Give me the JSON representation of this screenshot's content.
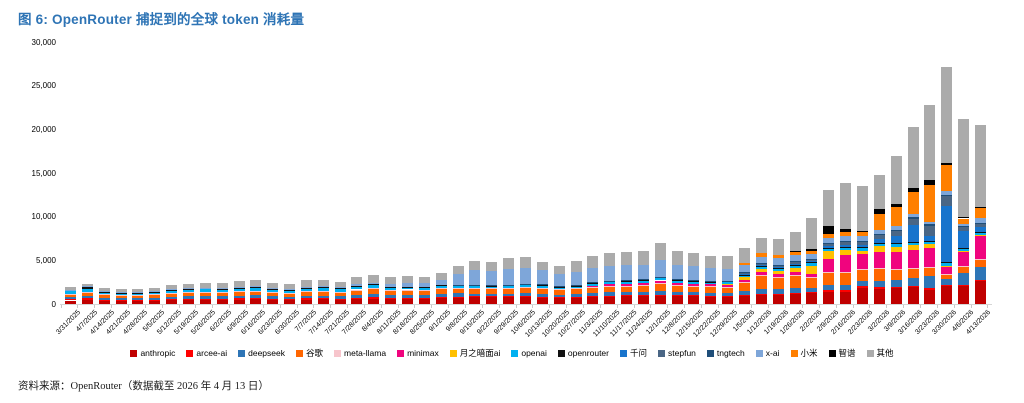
{
  "title": {
    "text": "图 6: OpenRouter 捕捉到的全球 token 消耗量"
  },
  "footer": {
    "text": "资料来源：OpenRouter（数据截至 2026 年 4 月 13 日）"
  },
  "chart_data": {
    "type": "bar",
    "stacked": true,
    "title": "图 6: OpenRouter 捕捉到的全球 token 消耗量",
    "xlabel": "",
    "ylabel": "",
    "ylim": [
      0,
      30000
    ],
    "y_ticks": [
      0,
      5000,
      10000,
      15000,
      20000,
      25000,
      30000
    ],
    "grid": false,
    "legend_position": "bottom",
    "categories": [
      "3/31/2025",
      "4/7/2025",
      "4/14/2025",
      "4/21/2025",
      "4/28/2025",
      "5/5/2025",
      "5/12/2025",
      "5/19/2025",
      "5/26/2025",
      "6/2/2025",
      "6/9/2025",
      "6/16/2025",
      "6/23/2025",
      "6/30/2025",
      "7/7/2025",
      "7/14/2025",
      "7/21/2025",
      "7/28/2025",
      "8/4/2025",
      "8/11/2025",
      "8/18/2025",
      "8/25/2025",
      "9/1/2025",
      "9/8/2025",
      "9/15/2025",
      "9/22/2025",
      "9/29/2025",
      "10/6/2025",
      "10/13/2025",
      "10/20/2025",
      "10/27/2025",
      "11/3/2025",
      "11/10/2025",
      "11/17/2025",
      "11/24/2025",
      "12/1/2025",
      "12/8/2025",
      "12/15/2025",
      "12/22/2025",
      "12/29/2025",
      "1/5/2026",
      "1/12/2026",
      "1/19/2026",
      "1/26/2026",
      "2/2/2026",
      "2/9/2026",
      "2/16/2026",
      "2/23/2026",
      "3/2/2026",
      "3/9/2026",
      "3/16/2026",
      "3/23/2026",
      "3/30/2026",
      "4/6/2026",
      "4/13/2026"
    ],
    "series": [
      {
        "name": "anthropic",
        "color": "#C00000",
        "values": [
          400,
          450,
          380,
          350,
          350,
          380,
          420,
          450,
          470,
          470,
          500,
          520,
          480,
          450,
          500,
          520,
          480,
          560,
          600,
          580,
          580,
          570,
          650,
          700,
          770,
          750,
          780,
          800,
          730,
          680,
          740,
          800,
          850,
          870,
          900,
          950,
          900,
          880,
          860,
          850,
          950,
          1040,
          1050,
          1100,
          1230,
          1420,
          1420,
          1800,
          1750,
          1800,
          1900,
          1650,
          2080,
          2080,
          2650
        ]
      },
      {
        "name": "arcee-ai",
        "color": "#FF0000",
        "values": [
          150,
          200,
          120,
          100,
          100,
          110,
          130,
          140,
          150,
          140,
          150,
          150,
          130,
          120,
          140,
          140,
          130,
          150,
          160,
          120,
          120,
          110,
          120,
          130,
          130,
          120,
          130,
          130,
          110,
          100,
          110,
          120,
          120,
          120,
          120,
          130,
          120,
          110,
          100,
          100,
          110,
          120,
          110,
          120,
          130,
          230,
          150,
          230,
          150,
          140,
          150,
          150,
          150,
          150,
          140
        ]
      },
      {
        "name": "deepseek",
        "color": "#2E75B6",
        "values": [
          250,
          280,
          220,
          200,
          200,
          220,
          260,
          280,
          290,
          280,
          300,
          310,
          280,
          260,
          300,
          310,
          280,
          340,
          370,
          320,
          330,
          320,
          360,
          380,
          300,
          290,
          290,
          320,
          330,
          290,
          300,
          330,
          350,
          360,
          370,
          420,
          370,
          350,
          340,
          330,
          380,
          580,
          560,
          600,
          500,
          580,
          580,
          580,
          700,
          800,
          900,
          1430,
          600,
          1270,
          1500
        ]
      },
      {
        "name": "谷歌",
        "color": "#FF6600",
        "values": [
          350,
          420,
          320,
          300,
          300,
          330,
          390,
          420,
          440,
          440,
          480,
          500,
          450,
          420,
          490,
          500,
          460,
          560,
          600,
          560,
          580,
          570,
          650,
          580,
          580,
          570,
          570,
          630,
          640,
          580,
          590,
          650,
          700,
          710,
          730,
          840,
          730,
          700,
          670,
          650,
          1000,
          1540,
          1300,
          1400,
          1200,
          1400,
          1500,
          1350,
          1500,
          1200,
          1100,
          990,
          500,
          810,
          800
        ]
      },
      {
        "name": "meta-llama",
        "color": "#F7C5CC",
        "values": [
          50,
          50,
          50,
          50,
          50,
          50,
          50,
          50,
          50,
          50,
          50,
          50,
          50,
          50,
          50,
          50,
          50,
          50,
          50,
          50,
          50,
          50,
          50,
          50,
          50,
          50,
          50,
          50,
          50,
          50,
          50,
          50,
          50,
          50,
          50,
          50,
          50,
          50,
          50,
          50,
          50,
          50,
          50,
          50,
          50,
          50,
          50,
          50,
          50,
          50,
          50,
          50,
          50,
          50,
          50
        ]
      },
      {
        "name": "minimax",
        "color": "#F0047E",
        "values": [
          0,
          0,
          0,
          0,
          0,
          0,
          0,
          0,
          0,
          0,
          0,
          0,
          0,
          0,
          0,
          0,
          0,
          0,
          0,
          0,
          0,
          0,
          0,
          0,
          0,
          0,
          0,
          0,
          0,
          0,
          0,
          150,
          200,
          220,
          250,
          300,
          250,
          230,
          220,
          220,
          250,
          300,
          320,
          350,
          380,
          1500,
          1900,
          1730,
          1800,
          2000,
          2100,
          2190,
          810,
          1550,
          2650
        ]
      },
      {
        "name": "月之暗面ai",
        "color": "#FFC000",
        "values": [
          0,
          0,
          0,
          0,
          0,
          0,
          0,
          0,
          0,
          0,
          0,
          0,
          0,
          0,
          0,
          0,
          0,
          0,
          0,
          0,
          0,
          0,
          0,
          0,
          0,
          0,
          0,
          0,
          0,
          0,
          0,
          0,
          0,
          0,
          0,
          0,
          0,
          0,
          0,
          100,
          300,
          350,
          400,
          500,
          900,
          900,
          580,
          380,
          700,
          580,
          500,
          400,
          200,
          200,
          150
        ]
      },
      {
        "name": "openai",
        "color": "#00B0F0",
        "values": [
          250,
          300,
          230,
          220,
          220,
          230,
          280,
          300,
          310,
          300,
          320,
          330,
          300,
          280,
          320,
          330,
          300,
          370,
          400,
          250,
          260,
          250,
          280,
          250,
          230,
          220,
          220,
          250,
          250,
          220,
          230,
          250,
          260,
          260,
          270,
          300,
          260,
          250,
          240,
          230,
          250,
          260,
          260,
          270,
          300,
          300,
          300,
          280,
          300,
          300,
          300,
          280,
          300,
          250,
          250
        ]
      },
      {
        "name": "openrouter",
        "color": "#111111",
        "values": [
          100,
          250,
          80,
          80,
          80,
          80,
          80,
          80,
          80,
          80,
          80,
          80,
          80,
          80,
          80,
          80,
          80,
          80,
          80,
          80,
          80,
          80,
          80,
          80,
          80,
          80,
          80,
          80,
          80,
          80,
          80,
          80,
          80,
          80,
          80,
          80,
          80,
          80,
          80,
          80,
          80,
          80,
          80,
          80,
          80,
          80,
          80,
          80,
          80,
          80,
          80,
          80,
          80,
          80,
          80
        ]
      },
      {
        "name": "千问",
        "color": "#1874CC",
        "values": [
          0,
          0,
          0,
          0,
          0,
          0,
          0,
          0,
          0,
          0,
          0,
          0,
          0,
          0,
          0,
          0,
          0,
          0,
          0,
          0,
          0,
          0,
          0,
          0,
          0,
          0,
          0,
          0,
          0,
          0,
          0,
          0,
          0,
          0,
          0,
          0,
          0,
          0,
          0,
          0,
          100,
          120,
          130,
          150,
          150,
          200,
          250,
          300,
          400,
          800,
          2000,
          600,
          6420,
          1920,
          600
        ]
      },
      {
        "name": "stepfun",
        "color": "#4A6685",
        "values": [
          0,
          0,
          0,
          0,
          0,
          0,
          0,
          0,
          0,
          0,
          0,
          0,
          0,
          0,
          0,
          0,
          0,
          0,
          0,
          0,
          0,
          0,
          0,
          0,
          0,
          0,
          0,
          0,
          0,
          0,
          0,
          0,
          0,
          0,
          0,
          0,
          0,
          0,
          0,
          0,
          100,
          150,
          200,
          250,
          200,
          300,
          350,
          400,
          500,
          600,
          700,
          1150,
          1150,
          400,
          300
        ]
      },
      {
        "name": "tngtech",
        "color": "#1F4E79",
        "values": [
          0,
          0,
          0,
          0,
          0,
          0,
          0,
          0,
          0,
          0,
          0,
          0,
          0,
          0,
          0,
          0,
          0,
          0,
          0,
          0,
          0,
          0,
          0,
          50,
          50,
          50,
          50,
          50,
          50,
          50,
          50,
          50,
          50,
          50,
          50,
          50,
          50,
          50,
          50,
          50,
          50,
          50,
          50,
          50,
          50,
          50,
          50,
          50,
          100,
          150,
          150,
          150,
          150,
          150,
          150
        ]
      },
      {
        "name": "x-ai",
        "color": "#7EA6D9",
        "values": [
          100,
          100,
          80,
          80,
          80,
          80,
          90,
          90,
          90,
          100,
          100,
          100,
          100,
          100,
          120,
          120,
          120,
          150,
          200,
          300,
          350,
          400,
          600,
          1200,
          1700,
          1600,
          1800,
          1800,
          1600,
          1400,
          1500,
          1600,
          1700,
          1700,
          1700,
          1900,
          1700,
          1600,
          1500,
          1400,
          900,
          770,
          800,
          700,
          500,
          580,
          580,
          580,
          450,
          400,
          350,
          300,
          400,
          300,
          580
        ]
      },
      {
        "name": "小米",
        "color": "#FF7F00",
        "values": [
          0,
          0,
          0,
          0,
          0,
          0,
          0,
          0,
          0,
          0,
          0,
          0,
          0,
          0,
          0,
          0,
          0,
          0,
          0,
          0,
          0,
          0,
          0,
          0,
          0,
          0,
          0,
          0,
          0,
          0,
          0,
          0,
          0,
          0,
          0,
          0,
          0,
          0,
          0,
          0,
          200,
          380,
          350,
          400,
          400,
          400,
          500,
          400,
          1800,
          2200,
          2500,
          4230,
          2970,
          580,
          1150
        ]
      },
      {
        "name": "智谱",
        "color": "#000000",
        "values": [
          0,
          0,
          0,
          0,
          0,
          0,
          0,
          0,
          0,
          0,
          0,
          0,
          0,
          0,
          0,
          0,
          0,
          0,
          0,
          0,
          0,
          0,
          0,
          0,
          0,
          0,
          0,
          0,
          0,
          0,
          0,
          0,
          0,
          0,
          0,
          0,
          0,
          0,
          0,
          0,
          0,
          0,
          0,
          100,
          200,
          970,
          300,
          200,
          580,
          400,
          500,
          580,
          300,
          150,
          100
        ]
      },
      {
        "name": "其他",
        "color": "#ABABAB",
        "values": [
          300,
          250,
          300,
          320,
          320,
          320,
          450,
          490,
          520,
          540,
          620,
          710,
          580,
          540,
          700,
          700,
          600,
          790,
          840,
          840,
          800,
          750,
          810,
          980,
          1010,
          1070,
          1280,
          1240,
          960,
          850,
          1250,
          1370,
          1440,
          1480,
          1580,
          1980,
          1540,
          1500,
          1440,
          1390,
          1680,
          1790,
          1800,
          2110,
          3530,
          4040,
          5260,
          5090,
          3940,
          5400,
          7020,
          8570,
          10940,
          11260,
          9350
        ]
      }
    ]
  }
}
